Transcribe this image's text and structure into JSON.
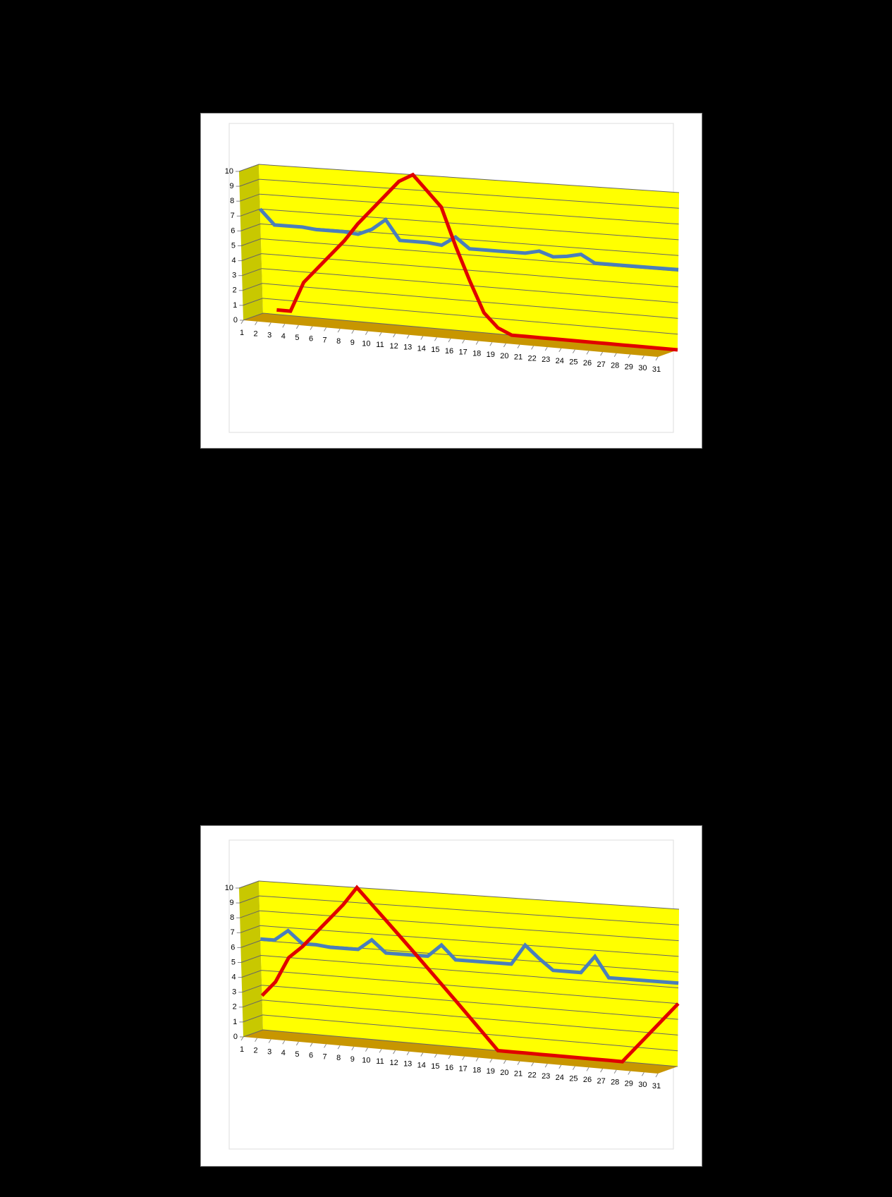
{
  "chart_data": [
    {
      "type": "line",
      "categories": [
        1,
        2,
        3,
        4,
        5,
        6,
        7,
        8,
        9,
        10,
        11,
        12,
        13,
        14,
        15,
        16,
        17,
        18,
        19,
        20,
        21,
        22,
        23,
        24,
        25,
        26,
        27,
        28,
        29,
        30,
        31
      ],
      "series": [
        {
          "color": "#4a7ebb",
          "values": [
            7,
            6,
            6,
            6,
            5.9,
            5.9,
            5.9,
            5.8,
            6.2,
            6.9,
            5.6,
            5.6,
            5.6,
            5.5,
            6.1,
            5.4,
            5.4,
            5.4,
            5.4,
            5.4,
            5.6,
            5.3,
            5.4,
            5.6,
            5.1,
            5.1,
            5.1,
            5.1,
            5.1,
            5.1,
            5.1
          ]
        },
        {
          "color": "#e00000",
          "values": [
            null,
            0.3,
            0.3,
            2.3,
            3.3,
            4.3,
            5.3,
            6.5,
            7.5,
            8.5,
            9.5,
            10,
            9,
            8,
            5.5,
            3.3,
            1.3,
            0.4,
            0,
            0,
            0,
            0,
            0,
            0,
            0,
            0,
            0,
            0,
            0,
            0,
            0
          ]
        }
      ],
      "ylim": [
        0,
        10
      ],
      "yticks": [
        0,
        1,
        2,
        3,
        4,
        5,
        6,
        7,
        8,
        9,
        10
      ],
      "grid": true
    },
    {
      "type": "line",
      "categories": [
        1,
        2,
        3,
        4,
        5,
        6,
        7,
        8,
        9,
        10,
        11,
        12,
        13,
        14,
        15,
        16,
        17,
        18,
        19,
        20,
        21,
        22,
        23,
        24,
        25,
        26,
        27,
        28,
        29,
        30,
        31
      ],
      "series": [
        {
          "color": "#4a7ebb",
          "values": [
            6.1,
            6.1,
            6.8,
            6,
            6,
            5.9,
            5.9,
            5.9,
            6.6,
            5.8,
            5.8,
            5.8,
            5.8,
            6.6,
            5.7,
            5.7,
            5.7,
            5.7,
            5.7,
            7,
            6.2,
            5.5,
            5.5,
            5.5,
            6.6,
            5.3,
            5.3,
            5.3,
            5.3,
            5.3,
            5.3
          ]
        },
        {
          "color": "#e00000",
          "values": [
            2.3,
            3.3,
            5,
            5.8,
            6.8,
            7.8,
            8.8,
            10,
            9,
            8,
            7,
            6,
            5,
            4,
            3,
            2,
            1,
            0,
            0,
            0,
            0,
            0,
            0,
            0,
            0,
            0,
            0,
            1,
            2,
            3,
            4
          ]
        }
      ],
      "ylim": [
        0,
        10
      ],
      "yticks": [
        0,
        1,
        2,
        3,
        4,
        5,
        6,
        7,
        8,
        9,
        10
      ],
      "grid": true
    }
  ]
}
